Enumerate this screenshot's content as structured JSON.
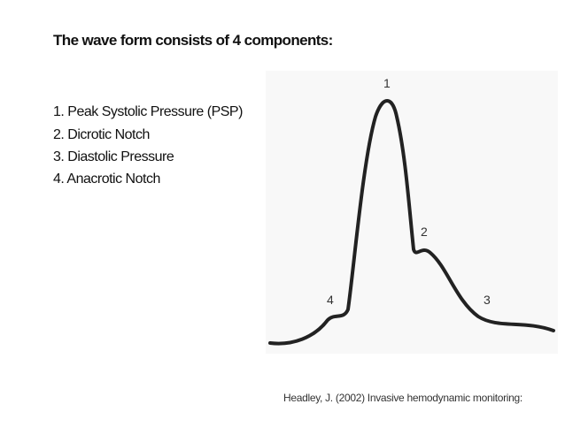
{
  "slide": {
    "title": "The wave form consists of 4 components:",
    "items": [
      "1. Peak Systolic Pressure (PSP)",
      "2. Dicrotic Notch",
      "3. Diastolic Pressure",
      "4. Anacrotic Notch"
    ],
    "figure": {
      "labels": [
        "1",
        "2",
        "3",
        "4"
      ]
    },
    "citation": "Headley, J. (2002) Invasive hemodynamic monitoring:"
  }
}
